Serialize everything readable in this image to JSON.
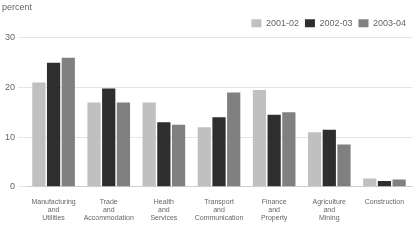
{
  "chart_data": {
    "type": "bar",
    "ylabel": "percent",
    "categories": [
      "Manufacturing\nand\nUtilities",
      "Trade\nand\nAccommodation",
      "Health\nand\nServices",
      "Transport\nand\nCommunication",
      "Finance\nand\nProperty",
      "Agriculture\nand\nMining",
      "Construction"
    ],
    "series": [
      {
        "name": "2001-02",
        "color": "#c0c0c0",
        "values": [
          21.0,
          17.0,
          17.0,
          12.0,
          19.5,
          11.0,
          1.7
        ]
      },
      {
        "name": "2002-03",
        "color": "#2e2e2e",
        "values": [
          25.0,
          19.8,
          13.0,
          14.0,
          14.5,
          11.5,
          1.2
        ]
      },
      {
        "name": "2003-04",
        "color": "#808080",
        "values": [
          26.0,
          17.0,
          12.5,
          19.0,
          15.0,
          8.5,
          1.5
        ]
      }
    ],
    "ylim": [
      0,
      30
    ],
    "yticks": [
      0,
      10,
      20,
      30
    ],
    "grid": true,
    "legend": "upper right"
  }
}
